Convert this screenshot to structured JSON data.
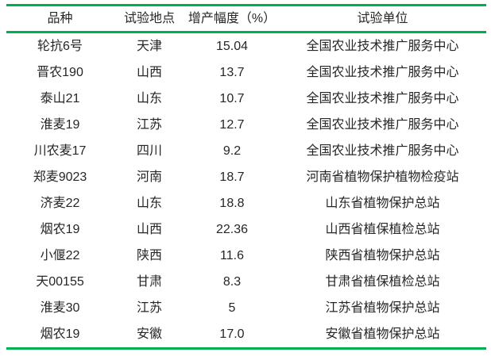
{
  "colors": {
    "accent": "#00B050",
    "text": "#262626",
    "background": "#ffffff"
  },
  "table": {
    "headers": [
      "品种",
      "试验地点",
      "增产幅度（%）",
      "试验单位"
    ],
    "rows": [
      [
        "轮抗6号",
        "天津",
        "15.04",
        "全国农业技术推广服务中心"
      ],
      [
        "晋农190",
        "山西",
        "13.7",
        "全国农业技术推广服务中心"
      ],
      [
        "泰山21",
        "山东",
        "10.7",
        "全国农业技术推广服务中心"
      ],
      [
        "淮麦19",
        "江苏",
        "12.7",
        "全国农业技术推广服务中心"
      ],
      [
        "川农麦17",
        "四川",
        "9.2",
        "全国农业技术推广服务中心"
      ],
      [
        "郑麦9023",
        "河南",
        "18.7",
        "河南省植物保护植物检疫站"
      ],
      [
        "济麦22",
        "山东",
        "18.8",
        "山东省植物保护总站"
      ],
      [
        "烟农19",
        "山西",
        "22.36",
        "山西省植保植检总站"
      ],
      [
        "小偃22",
        "陕西",
        "11.6",
        "陕西省植物保护总站"
      ],
      [
        "天00155",
        "甘肃",
        "8.3",
        "甘肃省植保植检总站"
      ],
      [
        "淮麦30",
        "江苏",
        "5",
        "江苏省植物保护总站"
      ],
      [
        "烟农19",
        "安徽",
        "17.0",
        "安徽省植物保护总站"
      ]
    ]
  }
}
